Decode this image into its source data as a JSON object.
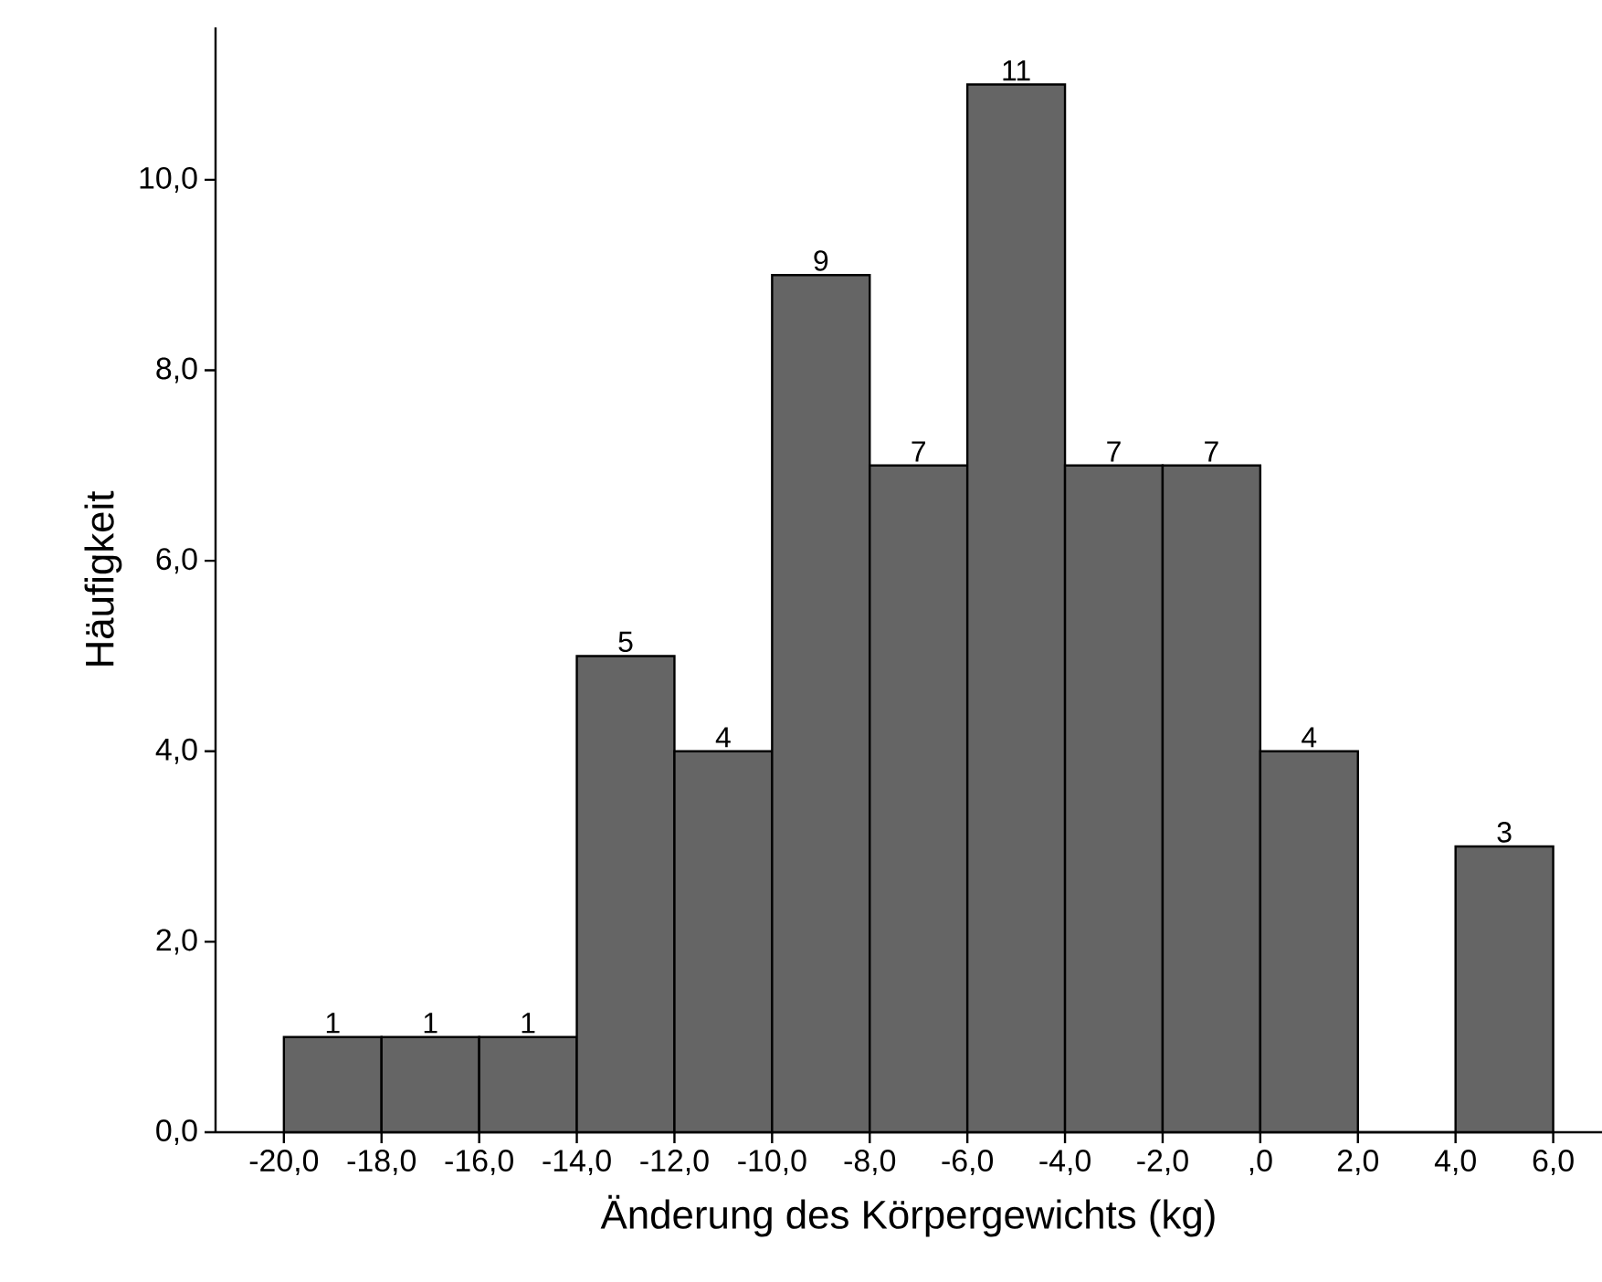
{
  "chart_data": {
    "type": "histogram",
    "xlabel": "Änderung des Körpergewichts (kg)",
    "ylabel": "Häufigkeit",
    "bins": [
      -20,
      -18,
      -16,
      -14,
      -12,
      -10,
      -8,
      -6,
      -4,
      -2,
      0,
      2,
      4,
      6
    ],
    "values": [
      1,
      1,
      1,
      5,
      4,
      9,
      7,
      11,
      7,
      7,
      4,
      0,
      3
    ],
    "value_labels": [
      "1",
      "1",
      "1",
      "5",
      "4",
      "9",
      "7",
      "11",
      "7",
      "7",
      "4",
      null,
      "3"
    ],
    "color": "#656565",
    "xlim": [
      -21.4,
      7
    ],
    "ylim": [
      0,
      11.6
    ],
    "xticks": [
      {
        "value": -20,
        "label": "-20,0"
      },
      {
        "value": -18,
        "label": "-18,0"
      },
      {
        "value": -16,
        "label": "-16,0"
      },
      {
        "value": -14,
        "label": "-14,0"
      },
      {
        "value": -12,
        "label": "-12,0"
      },
      {
        "value": -10,
        "label": "-10,0"
      },
      {
        "value": -8,
        "label": "-8,0"
      },
      {
        "value": -6,
        "label": "-6,0"
      },
      {
        "value": -4,
        "label": "-4,0"
      },
      {
        "value": -2,
        "label": "-2,0"
      },
      {
        "value": 0,
        "label": ",0"
      },
      {
        "value": 2,
        "label": "2,0"
      },
      {
        "value": 4,
        "label": "4,0"
      },
      {
        "value": 6,
        "label": "6,0"
      }
    ],
    "yticks": [
      {
        "value": 0,
        "label": "0,0"
      },
      {
        "value": 2,
        "label": "2,0"
      },
      {
        "value": 4,
        "label": "4,0"
      },
      {
        "value": 6,
        "label": "6,0"
      },
      {
        "value": 8,
        "label": "8,0"
      },
      {
        "value": 10,
        "label": "10,0"
      }
    ]
  }
}
